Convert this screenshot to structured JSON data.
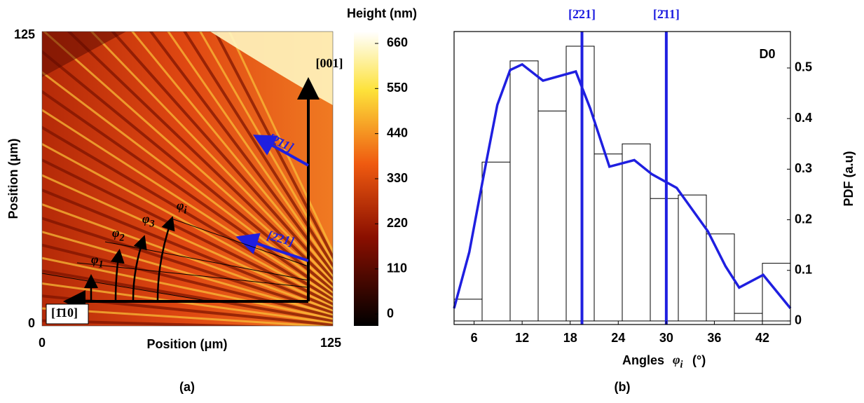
{
  "chart_data": [
    {
      "type": "heatmap",
      "xlabel": "Position (μm)",
      "ylabel": "Position (μm)",
      "xlim": [
        0,
        125
      ],
      "ylim": [
        0,
        125
      ],
      "xticks": [
        0,
        125
      ],
      "yticks": [
        0,
        125
      ],
      "colorbar": {
        "title": "Height (nm)",
        "lim": [
          -29,
          689
        ],
        "ticks": [
          0,
          110,
          220,
          330,
          440,
          550,
          660
        ]
      },
      "directions": [
        {
          "label": "[001]",
          "color": "#000000"
        },
        {
          "label": "[2̄11]",
          "color": "#1f1fe0"
        },
        {
          "label": "[2̄21]",
          "color": "#1f1fe0"
        },
        {
          "label": "[1̄10]",
          "color": "#000000"
        }
      ],
      "angle_labels": [
        {
          "text": "φ",
          "sub": "1"
        },
        {
          "text": "φ",
          "sub": "2"
        },
        {
          "text": "φ",
          "sub": "3"
        },
        {
          "text": "φ",
          "sub": "i"
        }
      ],
      "caption": "(a)"
    },
    {
      "type": "histogram",
      "bins": [
        3.5,
        7,
        10.5,
        14,
        17.5,
        21,
        24.5,
        28,
        31.5,
        35,
        38.5,
        42,
        45.5
      ],
      "values": [
        0.043,
        0.314,
        0.514,
        0.415,
        0.543,
        0.33,
        0.35,
        0.242,
        0.249,
        0.172,
        0.015,
        0.114
      ],
      "kde": {
        "color": "#1f1fe0",
        "x": [
          3.5,
          5.4,
          7.2,
          8.9,
          10.5,
          12,
          14.6,
          18.7,
          20.5,
          22.9,
          26,
          28.2,
          31.3,
          35.2,
          37.4,
          39.1,
          42.1,
          45.5
        ],
        "values": [
          0.025,
          0.136,
          0.288,
          0.427,
          0.496,
          0.507,
          0.475,
          0.493,
          0.42,
          0.305,
          0.318,
          0.29,
          0.263,
          0.177,
          0.108,
          0.066,
          0.091,
          0.025
        ]
      },
      "reference_lines": [
        {
          "value": 19.47,
          "label": "[2̄21]",
          "color": "#1f1fe0"
        },
        {
          "value": 30,
          "label": "[2̄11]",
          "color": "#1f1fe0"
        }
      ],
      "xlim": [
        3.5,
        45.5
      ],
      "xticks": [
        6,
        12,
        18,
        24,
        30,
        36,
        42
      ],
      "ylim": [
        -0.007,
        0.572
      ],
      "yticks": [
        0,
        0.1,
        0.2,
        0.3,
        0.4,
        0.5
      ],
      "xlabel": "Angles",
      "xlabel_symbol": {
        "text": "φ",
        "sub": "i"
      },
      "xlabel_unit": "(°)",
      "ylabel": "PDF (a.u)",
      "annotation": "D0",
      "caption": "(b)"
    }
  ]
}
